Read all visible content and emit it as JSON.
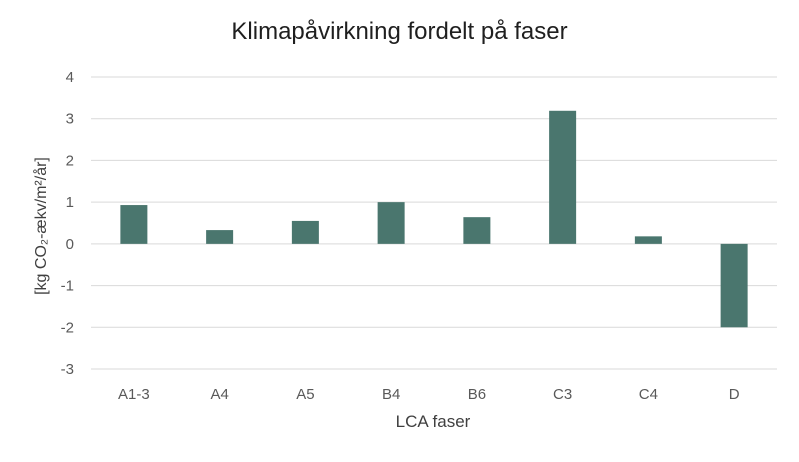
{
  "chart_data": {
    "type": "bar",
    "title": "Klimapåvirkning fordelt på faser",
    "xlabel": "LCA faser",
    "ylabel": "[kg CO₂-ækv/m²/år]",
    "categories": [
      "A1-3",
      "A4",
      "A5",
      "B4",
      "B6",
      "C3",
      "C4",
      "D"
    ],
    "values": [
      0.93,
      0.33,
      0.55,
      1.0,
      0.64,
      3.19,
      0.18,
      -2.0
    ],
    "ylim": [
      -3,
      4
    ],
    "yticks": [
      4,
      3,
      2,
      1,
      0,
      -1,
      -2,
      -3
    ],
    "grid": true,
    "bar_color": "#4a766e"
  }
}
